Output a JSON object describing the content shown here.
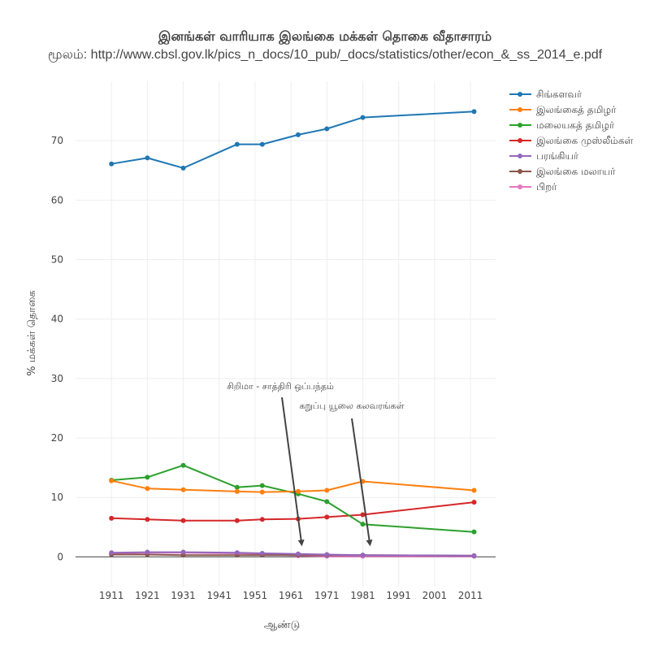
{
  "chart_data": {
    "type": "line",
    "title": "இனங்கள் வாரியாக இலங்கை மக்கள் தொகை வீதாசாரம்",
    "subtitle": "மூலம்: http://www.cbsl.gov.lk/pics_n_docs/10_pub/_docs/statistics/other/econ_&_ss_2014_e.pdf",
    "xlabel": "ஆண்டு",
    "ylabel": "% மக்கள் தொகை",
    "xlim": [
      1901,
      2018
    ],
    "ylim": [
      -5,
      80
    ],
    "xticks": [
      1911,
      1921,
      1931,
      1941,
      1951,
      1961,
      1971,
      1981,
      1991,
      2001,
      2011
    ],
    "yticks": [
      0,
      10,
      20,
      30,
      40,
      50,
      60,
      70
    ],
    "grid": true,
    "legend_position": "top-right",
    "series": [
      {
        "name": "சிங்களவர்",
        "color": "#1f77b4",
        "x": [
          1911,
          1921,
          1931,
          1946,
          1953,
          1963,
          1971,
          1981,
          2012
        ],
        "y": [
          66.1,
          67.1,
          65.4,
          69.4,
          69.4,
          71.0,
          72.0,
          73.9,
          74.9
        ]
      },
      {
        "name": "இலங்கைத் தமிழர்",
        "color": "#ff7f0e",
        "x": [
          1911,
          1921,
          1931,
          1946,
          1953,
          1963,
          1971,
          1981,
          2012
        ],
        "y": [
          12.8,
          11.5,
          11.3,
          11.0,
          10.9,
          11.0,
          11.2,
          12.7,
          11.2
        ]
      },
      {
        "name": "மலையகத் தமிழர்",
        "color": "#2ca02c",
        "x": [
          1911,
          1921,
          1931,
          1946,
          1953,
          1963,
          1971,
          1981,
          2012
        ],
        "y": [
          12.9,
          13.4,
          15.4,
          11.7,
          12.0,
          10.6,
          9.3,
          5.5,
          4.2
        ]
      },
      {
        "name": "இலங்கை முஸ்லீம்கள்",
        "color": "#d62728",
        "x": [
          1911,
          1921,
          1931,
          1946,
          1953,
          1963,
          1971,
          1981,
          2012
        ],
        "y": [
          6.5,
          6.3,
          6.1,
          6.1,
          6.3,
          6.4,
          6.7,
          7.1,
          9.2
        ]
      },
      {
        "name": "பரங்கியர்",
        "color": "#9467bd",
        "x": [
          1911,
          1921,
          1931,
          1946,
          1953,
          1963,
          1971,
          1981,
          2012
        ],
        "y": [
          0.7,
          0.8,
          0.8,
          0.7,
          0.6,
          0.5,
          0.4,
          0.3,
          0.2
        ]
      },
      {
        "name": "இலங்கை மலாயர்",
        "color": "#8c564b",
        "x": [
          1911,
          1921,
          1931,
          1946,
          1953,
          1963,
          1971,
          1981,
          2012
        ],
        "y": [
          0.4,
          0.4,
          0.3,
          0.3,
          0.3,
          0.3,
          0.3,
          0.3,
          0.2
        ]
      },
      {
        "name": "பிறர்",
        "color": "#e377c2",
        "x": [
          1911,
          1921,
          1931,
          1946,
          1953,
          1963,
          1971,
          1981,
          2012
        ],
        "y": [
          0.6,
          0.7,
          0.7,
          0.6,
          0.5,
          0.2,
          0.1,
          0.1,
          0.1
        ]
      }
    ],
    "annotations": [
      {
        "text": "சிறிமா - சாத்திரி ஒப்பந்தம்",
        "x": 1964,
        "y": 1.5
      },
      {
        "text": "கறுப்பு யூலை கலவரங்கள்",
        "x": 1983,
        "y": 1.5
      }
    ]
  }
}
